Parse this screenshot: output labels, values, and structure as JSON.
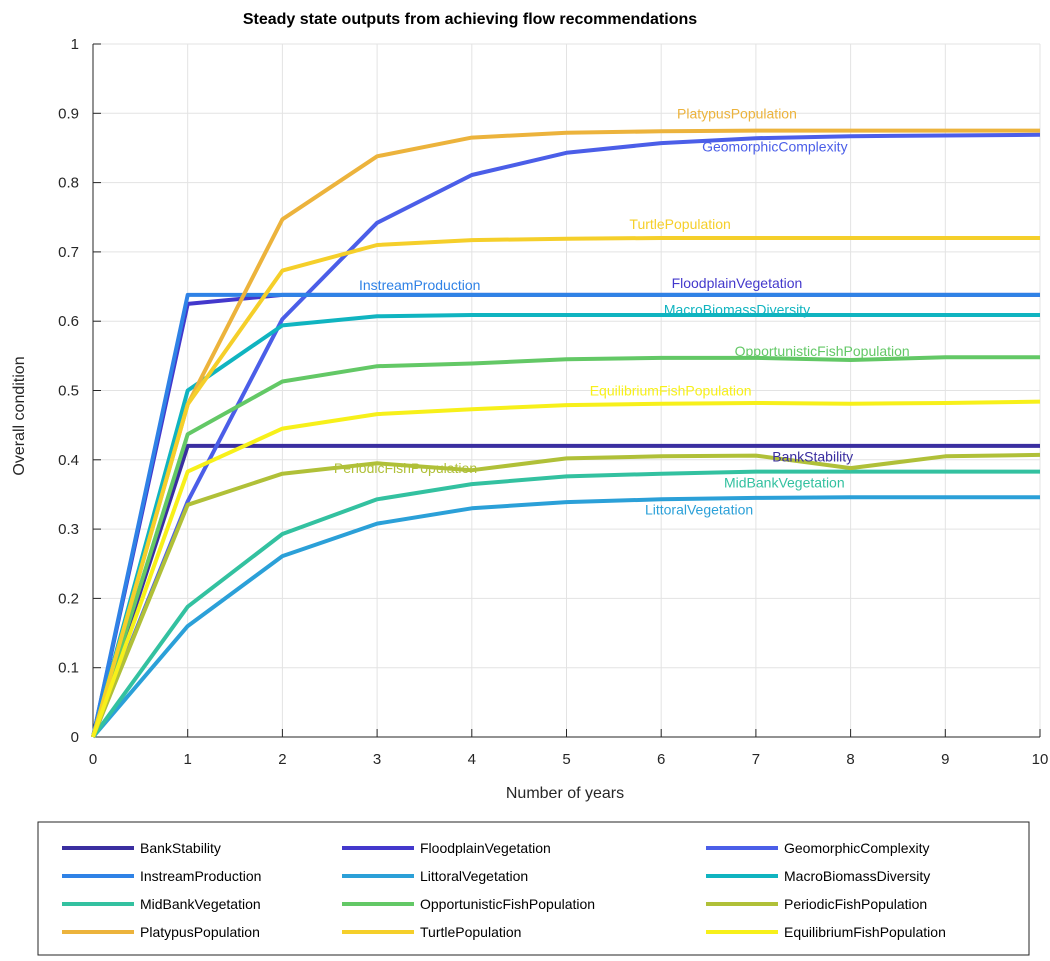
{
  "chart_data": {
    "type": "line",
    "title": "Steady state outputs from achieving flow recommendations",
    "xlabel": "Number of years",
    "ylabel": "Overall condition",
    "xlim": [
      0,
      10
    ],
    "ylim": [
      0,
      1
    ],
    "x_ticks": [
      0,
      1,
      2,
      3,
      4,
      5,
      6,
      7,
      8,
      9,
      10
    ],
    "y_ticks": [
      0,
      0.1,
      0.2,
      0.3,
      0.4,
      0.5,
      0.6,
      0.7,
      0.8,
      0.9,
      1
    ],
    "y_tick_labels": [
      "0",
      "0.1",
      "0.2",
      "0.3",
      "0.4",
      "0.5",
      "0.6",
      "0.7",
      "0.8",
      "0.9",
      "1"
    ],
    "grid": true,
    "legend_position": "bottom",
    "x": [
      0,
      1,
      2,
      3,
      4,
      5,
      6,
      7,
      8,
      9,
      10
    ],
    "series": [
      {
        "name": "BankStability",
        "color": "#3a2ea0",
        "label_at": [
          7.6,
          0.405
        ],
        "values": [
          0,
          0.42,
          0.42,
          0.42,
          0.42,
          0.42,
          0.42,
          0.42,
          0.42,
          0.42,
          0.42
        ]
      },
      {
        "name": "FloodplainVegetation",
        "color": "#4338cc",
        "label_at": [
          6.8,
          0.655
        ],
        "values": [
          0,
          0.625,
          0.638,
          0.638,
          0.638,
          0.638,
          0.638,
          0.638,
          0.638,
          0.638,
          0.638
        ]
      },
      {
        "name": "GeomorphicComplexity",
        "color": "#4b5ee8",
        "label_at": [
          7.2,
          0.852
        ],
        "values": [
          0,
          0.34,
          0.603,
          0.742,
          0.811,
          0.843,
          0.857,
          0.864,
          0.867,
          0.868,
          0.869
        ]
      },
      {
        "name": "InstreamProduction",
        "color": "#2f82e6",
        "label_at": [
          3.45,
          0.652
        ],
        "values": [
          0,
          0.638,
          0.638,
          0.638,
          0.638,
          0.638,
          0.638,
          0.638,
          0.638,
          0.638,
          0.638
        ]
      },
      {
        "name": "LittoralVegetation",
        "color": "#2ba0d8",
        "label_at": [
          6.4,
          0.328
        ],
        "values": [
          0,
          0.16,
          0.261,
          0.308,
          0.33,
          0.339,
          0.343,
          0.345,
          0.346,
          0.346,
          0.346
        ]
      },
      {
        "name": "MacroBiomassDiversity",
        "color": "#10b4c0",
        "label_at": [
          6.8,
          0.617
        ],
        "values": [
          0,
          0.5,
          0.594,
          0.607,
          0.609,
          0.609,
          0.609,
          0.609,
          0.609,
          0.609,
          0.609
        ]
      },
      {
        "name": "MidBankVegetation",
        "color": "#33c1a0",
        "label_at": [
          7.3,
          0.367
        ],
        "values": [
          0,
          0.188,
          0.293,
          0.343,
          0.365,
          0.376,
          0.38,
          0.383,
          0.383,
          0.383,
          0.383
        ]
      },
      {
        "name": "OpportunisticFishPopulation",
        "color": "#63c866",
        "label_at": [
          7.7,
          0.557
        ],
        "values": [
          0,
          0.437,
          0.513,
          0.535,
          0.539,
          0.545,
          0.547,
          0.547,
          0.544,
          0.548,
          0.548
        ]
      },
      {
        "name": "PeriodicFishPopulation",
        "color": "#b0c038",
        "label_at": [
          3.3,
          0.388
        ],
        "values": [
          0,
          0.335,
          0.38,
          0.395,
          0.385,
          0.402,
          0.405,
          0.406,
          0.388,
          0.405,
          0.407
        ]
      },
      {
        "name": "PlatypusPopulation",
        "color": "#ecb33c",
        "label_at": [
          6.8,
          0.9
        ],
        "values": [
          0,
          0.48,
          0.747,
          0.838,
          0.865,
          0.872,
          0.874,
          0.875,
          0.875,
          0.875,
          0.875
        ]
      },
      {
        "name": "TurtlePopulation",
        "color": "#f5cf2a",
        "label_at": [
          6.2,
          0.74
        ],
        "values": [
          0,
          0.48,
          0.673,
          0.71,
          0.717,
          0.719,
          0.72,
          0.72,
          0.72,
          0.72,
          0.72
        ]
      },
      {
        "name": "EquilibriumFishPopulation",
        "color": "#f7f01a",
        "label_at": [
          6.1,
          0.5
        ],
        "values": [
          0,
          0.383,
          0.445,
          0.466,
          0.473,
          0.479,
          0.481,
          0.482,
          0.481,
          0.482,
          0.484
        ]
      }
    ]
  }
}
